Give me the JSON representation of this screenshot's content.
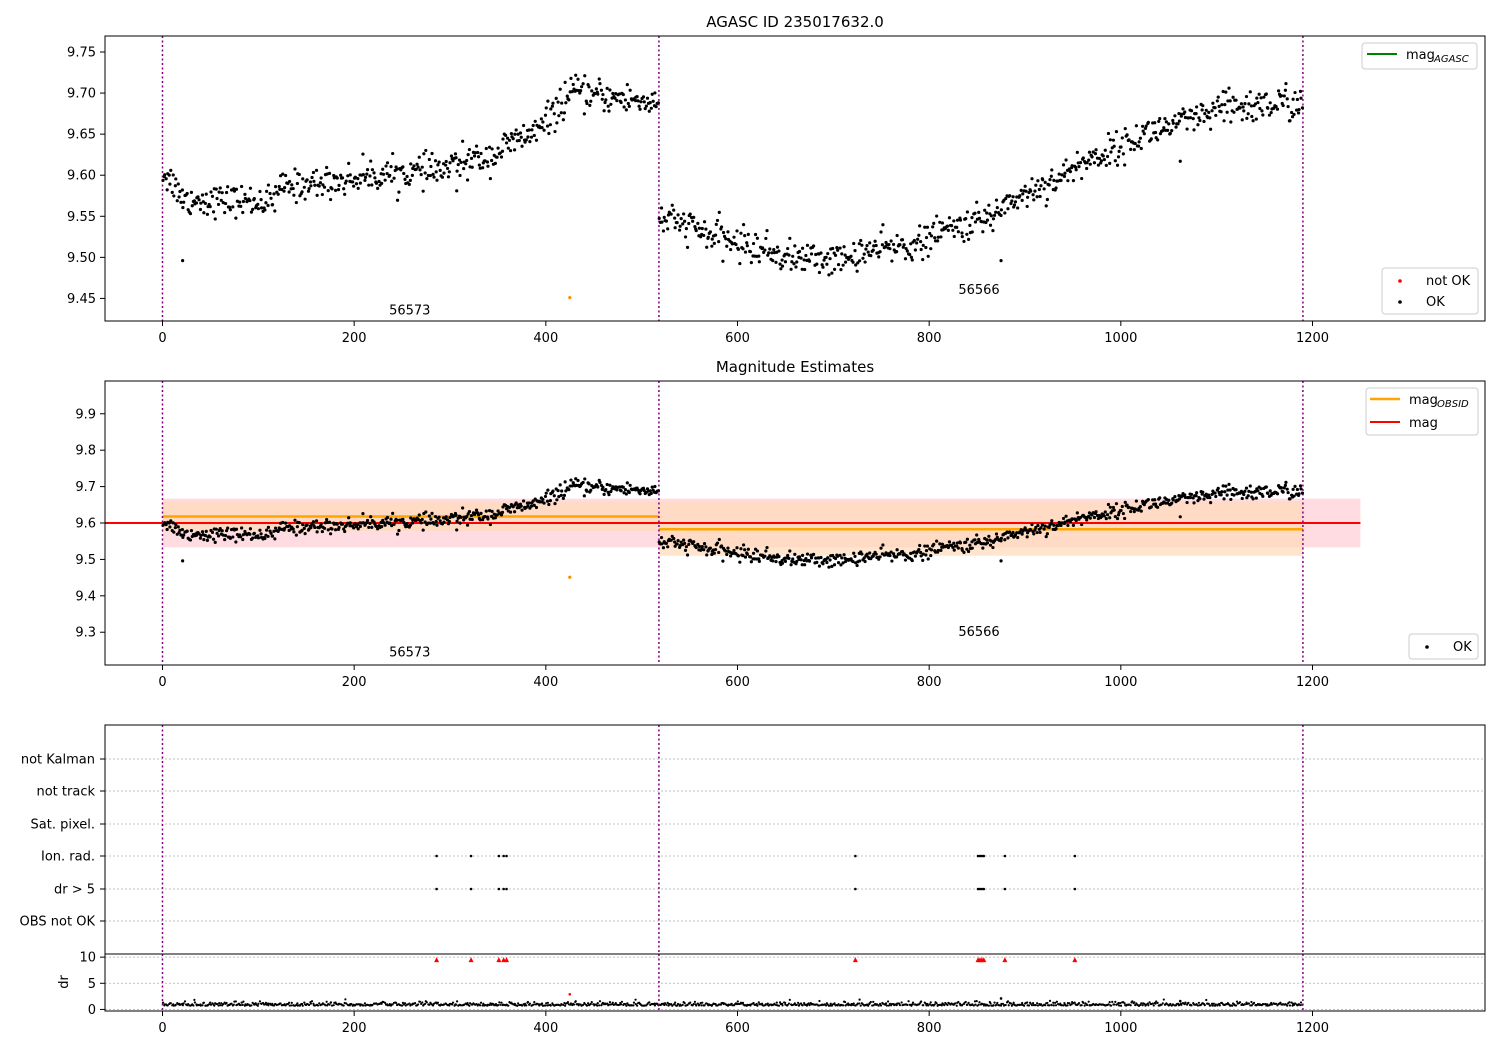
{
  "figure": {
    "title": "AGASC ID 235017632.0",
    "panel2_title": "Magnitude Estimates"
  },
  "colors": {
    "ok": "#000000",
    "not_ok": "#ff0000",
    "mag_agasc": "#008000",
    "mag_obsid": "#ffa500",
    "mag": "#ff0000",
    "obs_boundary": "#800080",
    "mag_band": "#ffc0cb",
    "obsid_band": "#ffdab9"
  },
  "chart_data": [
    {
      "id": "top",
      "type": "scatter",
      "title": "AGASC ID 235017632.0",
      "xlabel": "",
      "ylabel": "",
      "xlim": [
        -60,
        1380
      ],
      "ylim": [
        9.4225,
        9.7695
      ],
      "xticks": [
        0,
        200,
        400,
        600,
        800,
        1000,
        1200
      ],
      "yticks": [
        9.45,
        9.5,
        9.55,
        9.6,
        9.65,
        9.7,
        9.75
      ],
      "ytick_labels": [
        "9.45",
        "9.50",
        "9.55",
        "9.60",
        "9.65",
        "9.70",
        "9.75"
      ],
      "obs_boundaries": [
        0,
        518,
        1190
      ],
      "obs_labels": [
        {
          "text": "56573",
          "x": 258,
          "y": 9.435
        },
        {
          "text": "56566",
          "x": 852,
          "y": 9.46
        }
      ],
      "legends": [
        {
          "placement": "upper-right",
          "entries": [
            {
              "label": "mag",
              "sub": "AGASC",
              "marker": "line",
              "color": "#008000"
            }
          ]
        },
        {
          "placement": "lower-right",
          "entries": [
            {
              "label": "not OK",
              "marker": "dot",
              "color": "#ff0000"
            },
            {
              "label": "OK",
              "marker": "dot",
              "color": "#000000"
            }
          ]
        }
      ],
      "special_points": [
        {
          "x": 21,
          "y": 9.496,
          "color": "#000000"
        },
        {
          "x": 425,
          "y": 9.451,
          "color": "#ff8c00"
        },
        {
          "x": 875,
          "y": 9.496,
          "color": "#000000"
        },
        {
          "x": 1062,
          "y": 9.617,
          "color": "#000000"
        },
        {
          "x": 307,
          "y": 9.581,
          "color": "#000000"
        }
      ],
      "trend_segments": [
        {
          "x0": 0,
          "x1": 20,
          "y0": 9.605,
          "y1": 9.578,
          "noise": 0.012
        },
        {
          "x0": 20,
          "x1": 120,
          "y0": 9.57,
          "y1": 9.568,
          "noise": 0.011
        },
        {
          "x0": 120,
          "x1": 200,
          "y0": 9.585,
          "y1": 9.595,
          "noise": 0.011
        },
        {
          "x0": 200,
          "x1": 300,
          "y0": 9.598,
          "y1": 9.607,
          "noise": 0.011
        },
        {
          "x0": 300,
          "x1": 350,
          "y0": 9.612,
          "y1": 9.625,
          "noise": 0.011
        },
        {
          "x0": 350,
          "x1": 400,
          "y0": 9.63,
          "y1": 9.66,
          "noise": 0.011
        },
        {
          "x0": 400,
          "x1": 430,
          "y0": 9.665,
          "y1": 9.705,
          "noise": 0.012
        },
        {
          "x0": 430,
          "x1": 518,
          "y0": 9.7,
          "y1": 9.688,
          "noise": 0.011
        },
        {
          "x0": 518,
          "x1": 560,
          "y0": 9.548,
          "y1": 9.535,
          "noise": 0.011
        },
        {
          "x0": 560,
          "x1": 650,
          "y0": 9.53,
          "y1": 9.502,
          "noise": 0.012
        },
        {
          "x0": 650,
          "x1": 720,
          "y0": 9.5,
          "y1": 9.497,
          "noise": 0.011
        },
        {
          "x0": 720,
          "x1": 800,
          "y0": 9.505,
          "y1": 9.518,
          "noise": 0.011
        },
        {
          "x0": 800,
          "x1": 870,
          "y0": 9.527,
          "y1": 9.55,
          "noise": 0.011
        },
        {
          "x0": 870,
          "x1": 950,
          "y0": 9.56,
          "y1": 9.605,
          "noise": 0.011
        },
        {
          "x0": 950,
          "x1": 1020,
          "y0": 9.61,
          "y1": 9.645,
          "noise": 0.011
        },
        {
          "x0": 1020,
          "x1": 1100,
          "y0": 9.65,
          "y1": 9.675,
          "noise": 0.011
        },
        {
          "x0": 1100,
          "x1": 1190,
          "y0": 9.68,
          "y1": 9.69,
          "noise": 0.013
        }
      ]
    },
    {
      "id": "middle",
      "type": "scatter",
      "title": "Magnitude Estimates",
      "xlabel": "",
      "ylabel": "",
      "xlim": [
        -60,
        1380
      ],
      "ylim": [
        9.21,
        9.99
      ],
      "xticks": [
        0,
        200,
        400,
        600,
        800,
        1000,
        1200
      ],
      "yticks": [
        9.3,
        9.4,
        9.5,
        9.6,
        9.7,
        9.8,
        9.9
      ],
      "ytick_labels": [
        "9.3",
        "9.4",
        "9.5",
        "9.6",
        "9.7",
        "9.8",
        "9.9"
      ],
      "obs_boundaries": [
        0,
        518,
        1190
      ],
      "obs_labels": [
        {
          "text": "56573",
          "x": 258,
          "y": 9.245
        },
        {
          "text": "56566",
          "x": 852,
          "y": 9.3
        }
      ],
      "mag": {
        "value": 9.6,
        "band": [
          9.533,
          9.667
        ],
        "x": [
          0,
          1250
        ]
      },
      "mag_obsid": [
        {
          "x0": 0,
          "x1": 518,
          "value": 9.618,
          "band": [
            9.578,
            9.66
          ]
        },
        {
          "x0": 518,
          "x1": 1190,
          "value": 9.583,
          "band": [
            9.51,
            9.66
          ]
        }
      ],
      "legends": [
        {
          "placement": "upper-right",
          "entries": [
            {
              "label": "mag",
              "sub": "OBSID",
              "marker": "line",
              "color": "#ffa500"
            },
            {
              "label": "mag",
              "marker": "line",
              "color": "#ff0000"
            }
          ]
        },
        {
          "placement": "lower-right",
          "entries": [
            {
              "label": "OK",
              "marker": "dot",
              "color": "#000000"
            }
          ]
        }
      ]
    },
    {
      "id": "flags",
      "type": "scatter",
      "xlim": [
        -60,
        1380
      ],
      "categories": [
        "not Kalman",
        "not track",
        "Sat. pixel.",
        "Ion. rad.",
        "dr > 5",
        "OBS not OK"
      ],
      "flag_x": [
        286,
        322,
        351,
        356,
        359,
        723,
        851,
        853,
        855,
        857,
        879,
        952
      ],
      "flagged_rows": [
        "Ion. rad.",
        "dr > 5"
      ],
      "obs_boundaries": [
        0,
        518,
        1190
      ]
    },
    {
      "id": "dr",
      "type": "scatter",
      "xlabel": "",
      "ylabel": "dr",
      "xlim": [
        -60,
        1380
      ],
      "ylim": [
        -0.3,
        10.6
      ],
      "xticks": [
        0,
        200,
        400,
        600,
        800,
        1000,
        1200
      ],
      "yticks": [
        0,
        5,
        10
      ],
      "ytick_labels": [
        "0",
        "5",
        "10"
      ],
      "dr_baseline": 0.7,
      "clipped_points_at": 10,
      "clipped_x": [
        286,
        322,
        351,
        356,
        359,
        723,
        851,
        853,
        855,
        857,
        879,
        952
      ],
      "extra_points": [
        {
          "x": 425,
          "y": 2.9,
          "color": "#ff0000"
        },
        {
          "x": 875,
          "y": 2.1,
          "color": "#000000"
        },
        {
          "x": 1062,
          "y": 1.6,
          "color": "#000000"
        }
      ],
      "obs_boundaries": [
        0,
        518,
        1190
      ]
    }
  ]
}
